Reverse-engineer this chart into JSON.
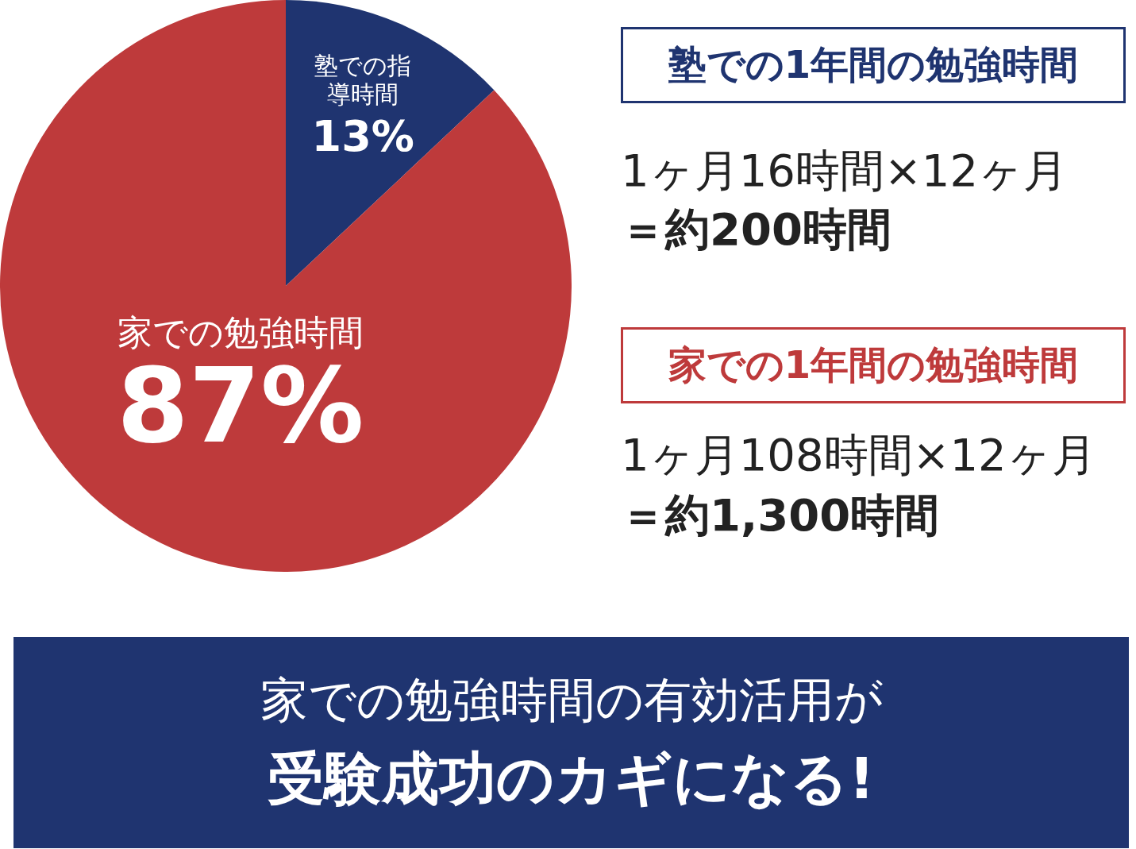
{
  "chart_data": {
    "type": "pie",
    "categories": [
      "塾での指導時間",
      "家での勉強時間"
    ],
    "values": [
      13,
      87
    ],
    "value_labels": [
      "13%",
      "87%"
    ],
    "colors": [
      "#1f3470",
      "#be3a3b"
    ],
    "legend": false,
    "annotations": [
      "塾での1年間の勉強時間",
      "1ヶ月16時間×12ヶ月",
      "＝約200時間",
      "家での1年間の勉強時間",
      "1ヶ月108時間×12ヶ月",
      "＝約1,300時間",
      "家での勉強時間の有効活用が",
      "受験成功のカギになる!"
    ]
  }
}
